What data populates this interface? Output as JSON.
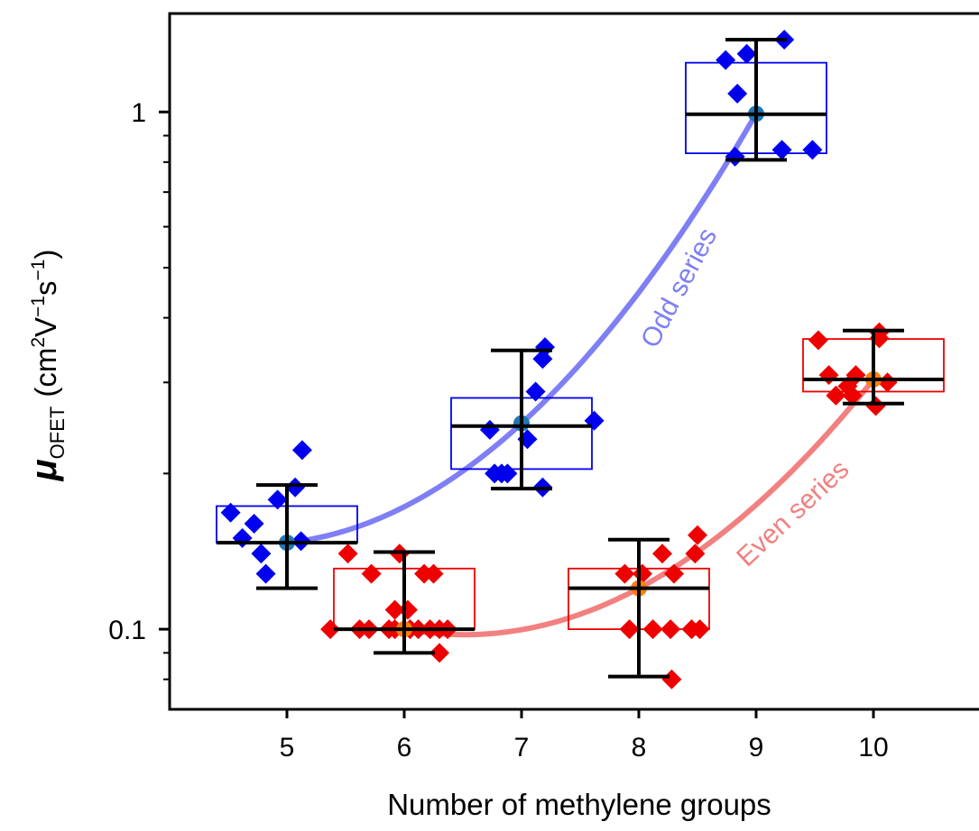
{
  "chart_data": {
    "type": "scatter",
    "xlabel": "Number of methylene groups",
    "ylabel": {
      "symbol": "μ",
      "subscript": "OFET",
      "units_open": "(cm",
      "units_sup1": "2",
      "units_mid": "V",
      "units_sup2": "−1",
      "units_mid2": "s",
      "units_sup3": "−1",
      "units_close": ")"
    },
    "x_ticks": [
      5,
      6,
      7,
      8,
      9,
      10
    ],
    "y_ticks": [
      {
        "value": 1,
        "label": "1"
      },
      {
        "value": 0.1,
        "label": "0.1"
      }
    ],
    "y_scale": "log",
    "xlim": [
      4.0,
      10.9
    ],
    "ylim": [
      0.07,
      1.55
    ],
    "grid": false,
    "series": [
      {
        "name": "Odd series",
        "color": "#0000ee",
        "curve_color": "#7f7ff5",
        "groups": [
          {
            "x": 5,
            "box": [
              0.147,
              0.173
            ],
            "median": 0.147,
            "mean": 0.147,
            "whisker": [
              0.12,
              0.19
            ],
            "points": [
              [
                4.52,
                0.168
              ],
              [
                4.62,
                0.15
              ],
              [
                4.72,
                0.16
              ],
              [
                4.78,
                0.14
              ],
              [
                4.82,
                0.128
              ],
              [
                4.92,
                0.178
              ],
              [
                5.07,
                0.188
              ],
              [
                5.12,
                0.148
              ],
              [
                5.13,
                0.222
              ]
            ]
          },
          {
            "x": 7,
            "box": [
              0.204,
              0.28
            ],
            "median": 0.247,
            "mean": 0.25,
            "whisker": [
              0.187,
              0.346
            ],
            "points": [
              [
                6.73,
                0.243
              ],
              [
                6.77,
                0.2
              ],
              [
                6.83,
                0.2
              ],
              [
                6.88,
                0.2
              ],
              [
                7.05,
                0.233
              ],
              [
                7.12,
                0.288
              ],
              [
                7.18,
                0.188
              ],
              [
                7.18,
                0.333
              ],
              [
                7.2,
                0.351
              ],
              [
                7.62,
                0.253
              ]
            ]
          },
          {
            "x": 9,
            "box": [
              0.832,
              1.245
            ],
            "median": 0.99,
            "mean": 0.992,
            "whisker": [
              0.808,
              1.38
            ],
            "points": [
              [
                8.74,
                1.26
              ],
              [
                8.92,
                1.295
              ],
              [
                8.82,
                0.82
              ],
              [
                8.84,
                1.085
              ],
              [
                9.22,
                0.845
              ],
              [
                9.24,
                1.38
              ],
              [
                9.48,
                0.845
              ]
            ]
          }
        ]
      },
      {
        "name": "Even series",
        "color": "#ee0000",
        "curve_color": "#f28080",
        "groups": [
          {
            "x": 6,
            "box": [
              0.1,
              0.131
            ],
            "median": 0.1,
            "mean": 0.1,
            "whisker": [
              0.09,
              0.141
            ],
            "points": [
              [
                5.37,
                0.1
              ],
              [
                5.52,
                0.14
              ],
              [
                5.62,
                0.1
              ],
              [
                5.7,
                0.1
              ],
              [
                5.72,
                0.128
              ],
              [
                5.87,
                0.1
              ],
              [
                5.92,
                0.109
              ],
              [
                5.92,
                0.1
              ],
              [
                5.96,
                0.14
              ],
              [
                6.03,
                0.109
              ],
              [
                6.05,
                0.1
              ],
              [
                6.12,
                0.1
              ],
              [
                6.17,
                0.128
              ],
              [
                6.22,
                0.1
              ],
              [
                6.25,
                0.128
              ],
              [
                6.3,
                0.1
              ],
              [
                6.3,
                0.09
              ],
              [
                6.37,
                0.1
              ]
            ]
          },
          {
            "x": 8,
            "box": [
              0.1,
              0.131
            ],
            "median": 0.12,
            "mean": 0.12,
            "whisker": [
              0.081,
              0.149
            ],
            "points": [
              [
                7.88,
                0.128
              ],
              [
                7.92,
                0.1
              ],
              [
                8.03,
                0.128
              ],
              [
                8.12,
                0.1
              ],
              [
                8.2,
                0.14
              ],
              [
                8.27,
                0.1
              ],
              [
                8.28,
                0.08
              ],
              [
                8.3,
                0.128
              ],
              [
                8.45,
                0.1
              ],
              [
                8.48,
                0.14
              ],
              [
                8.5,
                0.152
              ],
              [
                8.52,
                0.1
              ]
            ]
          },
          {
            "x": 10,
            "box": [
              0.288,
              0.364
            ],
            "median": 0.304,
            "mean": 0.304,
            "whisker": [
              0.273,
              0.378
            ],
            "points": [
              [
                9.53,
                0.362
              ],
              [
                9.62,
                0.31
              ],
              [
                9.68,
                0.283
              ],
              [
                9.78,
                0.295
              ],
              [
                9.82,
                0.283
              ],
              [
                9.85,
                0.31
              ],
              [
                10.02,
                0.27
              ],
              [
                10.05,
                0.375
              ],
              [
                10.05,
                0.365
              ],
              [
                10.12,
                0.3
              ]
            ]
          }
        ]
      }
    ]
  }
}
